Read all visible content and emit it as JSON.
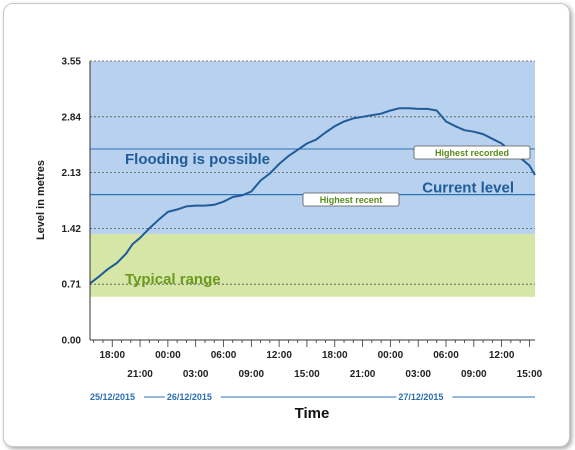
{
  "chart_data": {
    "type": "line",
    "title": "",
    "xlabel": "Time",
    "ylabel": "Level in metres",
    "ylim": [
      0,
      3.55
    ],
    "yticks": [
      "0.00",
      "0.71",
      "1.42",
      "2.13",
      "2.84",
      "3.55"
    ],
    "ytick_values": [
      0,
      0.71,
      1.42,
      2.13,
      2.84,
      3.55
    ],
    "x_hours_range": [
      -2.4,
      45.6
    ],
    "x_ticks_upper": [
      {
        "label": "18:00",
        "h": 0
      },
      {
        "label": "00:00",
        "h": 6
      },
      {
        "label": "06:00",
        "h": 12
      },
      {
        "label": "12:00",
        "h": 18
      },
      {
        "label": "18:00",
        "h": 24
      },
      {
        "label": "00:00",
        "h": 30
      },
      {
        "label": "06:00",
        "h": 36
      },
      {
        "label": "12:00",
        "h": 42
      }
    ],
    "x_ticks_lower": [
      {
        "label": "21:00",
        "h": 3
      },
      {
        "label": "03:00",
        "h": 9
      },
      {
        "label": "09:00",
        "h": 15
      },
      {
        "label": "15:00",
        "h": 21
      },
      {
        "label": "21:00",
        "h": 27
      },
      {
        "label": "03:00",
        "h": 33
      },
      {
        "label": "09:00",
        "h": 39
      },
      {
        "label": "15:00",
        "h": 45
      }
    ],
    "dates": [
      {
        "label": "25/12/2015",
        "h_start": -2.4,
        "h_end": 6
      },
      {
        "label": "26/12/2015",
        "h_start": 6,
        "h_end": 30
      },
      {
        "label": "27/12/2015",
        "h_start": 30,
        "h_end": 45.6
      }
    ],
    "bands": [
      {
        "name": "Typical range",
        "from": 0.55,
        "to": 1.35,
        "color": "#d6e6a6",
        "label_color": "#6a9a20"
      },
      {
        "name": "Flooding is possible",
        "from": 1.35,
        "to": 3.55,
        "color": "#b8d1ee",
        "label_color": "#1f5c99"
      }
    ],
    "reference_lines": [
      {
        "name": "Current level",
        "value": 1.85,
        "color": "#2a6fb5"
      },
      {
        "name": "Highest recent",
        "value": 1.85,
        "color": "#2a6fb5"
      },
      {
        "name": "Highest recorded",
        "value": 2.43,
        "color": "#2a6fb5"
      }
    ],
    "series": [
      {
        "color": "#1f5c99",
        "points": [
          [
            -2.4,
            0.72
          ],
          [
            -1.5,
            0.8
          ],
          [
            -0.5,
            0.9
          ],
          [
            0.5,
            0.98
          ],
          [
            1.5,
            1.1
          ],
          [
            2.2,
            1.22
          ],
          [
            3.0,
            1.3
          ],
          [
            4.0,
            1.42
          ],
          [
            5.0,
            1.53
          ],
          [
            6.0,
            1.63
          ],
          [
            7.0,
            1.66
          ],
          [
            8.0,
            1.7
          ],
          [
            9.0,
            1.71
          ],
          [
            10.0,
            1.71
          ],
          [
            11.0,
            1.72
          ],
          [
            12.0,
            1.76
          ],
          [
            13.0,
            1.82
          ],
          [
            14.0,
            1.84
          ],
          [
            15.0,
            1.89
          ],
          [
            16.0,
            2.03
          ],
          [
            17.0,
            2.12
          ],
          [
            18.0,
            2.24
          ],
          [
            19.0,
            2.34
          ],
          [
            20.0,
            2.42
          ],
          [
            21.0,
            2.5
          ],
          [
            22.0,
            2.55
          ],
          [
            23.0,
            2.64
          ],
          [
            24.0,
            2.72
          ],
          [
            25.0,
            2.78
          ],
          [
            26.0,
            2.82
          ],
          [
            27.0,
            2.84
          ],
          [
            28.0,
            2.86
          ],
          [
            29.0,
            2.88
          ],
          [
            30.0,
            2.92
          ],
          [
            31.0,
            2.95
          ],
          [
            32.0,
            2.95
          ],
          [
            33.0,
            2.94
          ],
          [
            34.0,
            2.94
          ],
          [
            35.0,
            2.92
          ],
          [
            36.0,
            2.78
          ],
          [
            37.0,
            2.72
          ],
          [
            38.0,
            2.67
          ],
          [
            39.0,
            2.65
          ],
          [
            40.0,
            2.62
          ],
          [
            41.0,
            2.56
          ],
          [
            42.0,
            2.5
          ],
          [
            43.0,
            2.4
          ],
          [
            44.0,
            2.32
          ],
          [
            45.0,
            2.22
          ],
          [
            45.6,
            2.1
          ]
        ]
      }
    ]
  }
}
